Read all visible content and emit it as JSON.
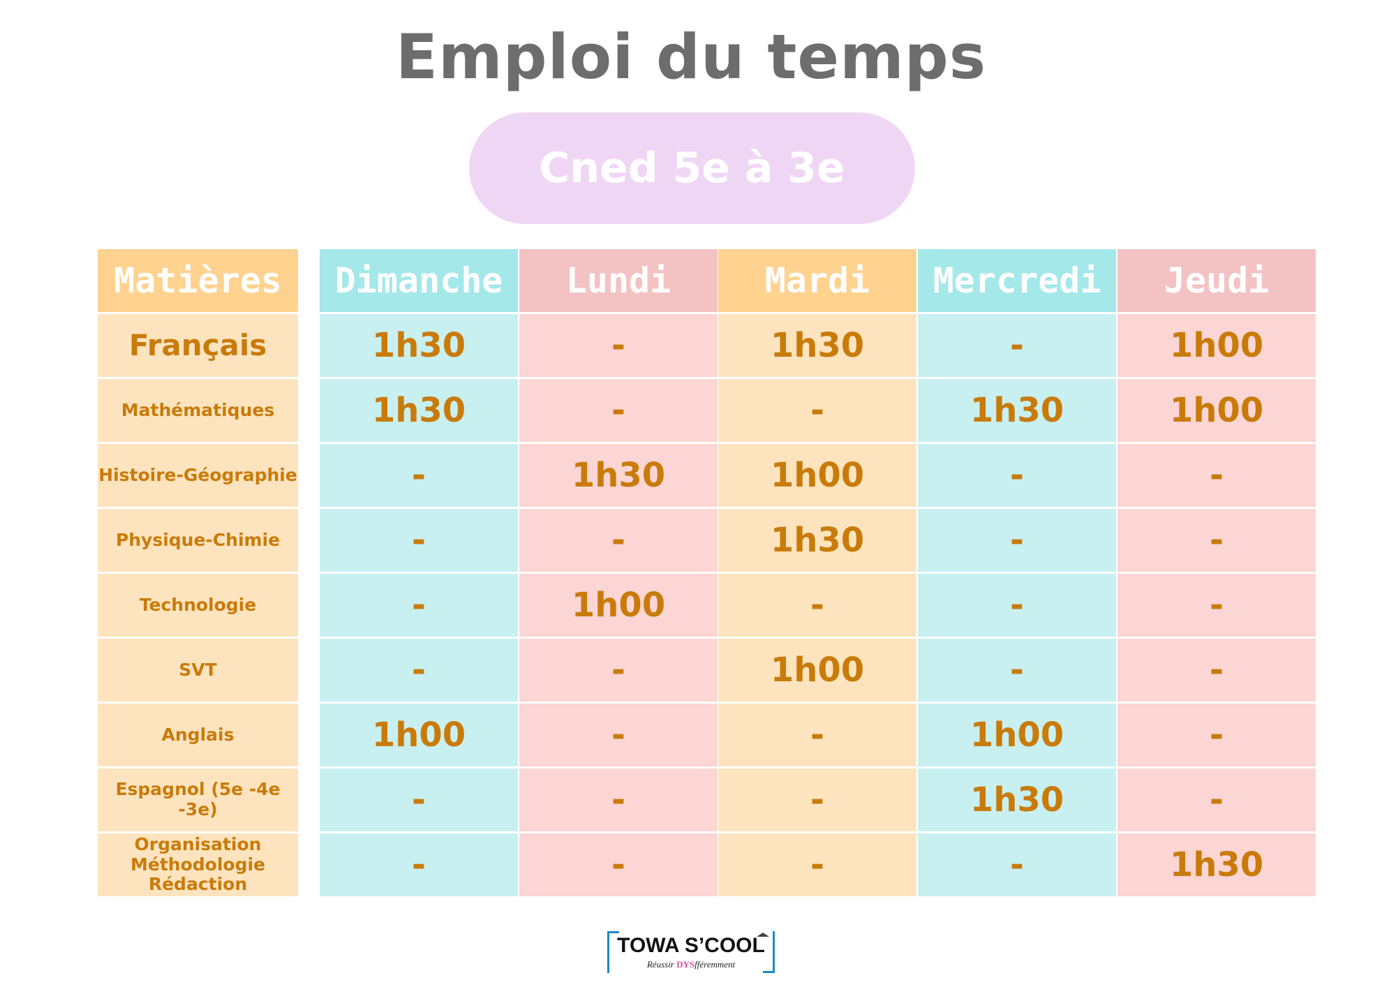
{
  "title": "Emploi du temps",
  "subtitle": "Cned 5e à 3e",
  "colors": {
    "subject_col": "#fde4bf",
    "subject_header": "#ffd28f",
    "title": "#6d6d6d",
    "pill": "#f0d6f5",
    "text": "#c97b0a",
    "days": [
      {
        "header": "#a4e8ea",
        "cell": "#c8f0f1"
      },
      {
        "header": "#f3c3c3",
        "cell": "#fcd5d5"
      },
      {
        "header": "#ffd28f",
        "cell": "#fde4bf"
      },
      {
        "header": "#a4e8ea",
        "cell": "#c8f0f1"
      },
      {
        "header": "#f3c3c3",
        "cell": "#fcd5d5"
      }
    ]
  },
  "table": {
    "subject_header": "Matières",
    "days": [
      "Dimanche",
      "Lundi",
      "Mardi",
      "Mercredi",
      "Jeudi"
    ],
    "rows": [
      {
        "subject": "Français",
        "values": [
          "1h30",
          "-",
          "1h30",
          "-",
          "1h00"
        ]
      },
      {
        "subject": "Mathématiques",
        "values": [
          "1h30",
          "-",
          "-",
          "1h30",
          "1h00"
        ]
      },
      {
        "subject": "Histoire-Géographie",
        "values": [
          "-",
          "1h30",
          "1h00",
          "-",
          "-"
        ]
      },
      {
        "subject": "Physique-Chimie",
        "values": [
          "-",
          "-",
          "1h30",
          "-",
          "-"
        ]
      },
      {
        "subject": "Technologie",
        "values": [
          "-",
          "1h00",
          "-",
          "-",
          "-"
        ]
      },
      {
        "subject": "SVT",
        "values": [
          "-",
          "-",
          "1h00",
          "-",
          "-"
        ]
      },
      {
        "subject": "Anglais",
        "values": [
          "1h00",
          "-",
          "-",
          "1h00",
          "-"
        ]
      },
      {
        "subject": "Espagnol (5e -4e -3e)",
        "values": [
          "-",
          "-",
          "-",
          "1h30",
          "-"
        ]
      },
      {
        "subject": "Organisation\nMéthodologie\nRédaction",
        "values": [
          "-",
          "-",
          "-",
          "-",
          "1h30"
        ]
      }
    ]
  },
  "logo": {
    "name": "TOWA S’COOL",
    "tagline_before": "Réussir",
    "tagline_dys": "DYS",
    "tagline_after": "fféremment"
  }
}
